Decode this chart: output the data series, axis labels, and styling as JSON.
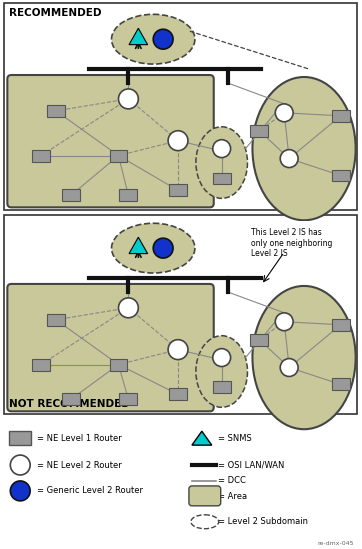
{
  "bg_color": "#ffffff",
  "area_fill": "#c8c89a",
  "area_edge": "#444444",
  "router_l1_fill": "#999999",
  "router_l1_edge": "#555555",
  "router_l2_fill": "#ffffff",
  "router_l2_edge": "#444444",
  "router_generic_fill": "#1133cc",
  "router_generic_edge": "#111111",
  "snms_fill": "#00cccc",
  "snms_edge": "#000000",
  "osi_color": "#111111",
  "dcc_color": "#888888",
  "panel1_title": "RECOMMENDED",
  "panel2_title": "NOT RECOMMENDED",
  "note_text": "This Level 2 IS has\nonly one neighboring\nLevel 2 IS",
  "file_ref": "re-dmx-045",
  "legend_left": [
    "= NE Level 1 Router",
    "= NE Level 2 Router",
    "= Generic Level 2 Router"
  ],
  "legend_right": [
    "= SNMS",
    "= OSI LAN/WAN",
    "= DCC",
    "= Area",
    "= Level 2 Subdomain"
  ]
}
